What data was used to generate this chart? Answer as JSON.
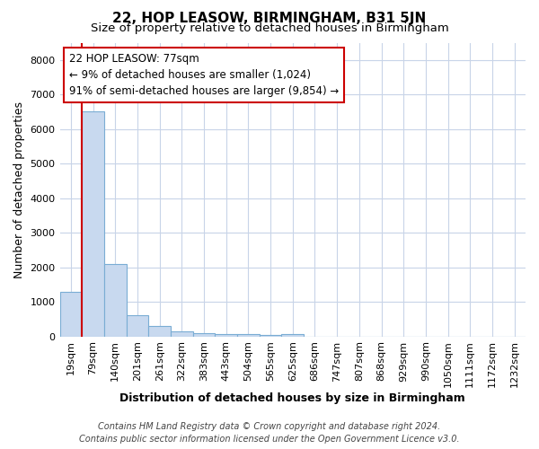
{
  "title": "22, HOP LEASOW, BIRMINGHAM, B31 5JN",
  "subtitle": "Size of property relative to detached houses in Birmingham",
  "xlabel": "Distribution of detached houses by size in Birmingham",
  "ylabel": "Number of detached properties",
  "footer_line1": "Contains HM Land Registry data © Crown copyright and database right 2024.",
  "footer_line2": "Contains public sector information licensed under the Open Government Licence v3.0.",
  "categories": [
    "19sqm",
    "79sqm",
    "140sqm",
    "201sqm",
    "261sqm",
    "322sqm",
    "383sqm",
    "443sqm",
    "504sqm",
    "565sqm",
    "625sqm",
    "686sqm",
    "747sqm",
    "807sqm",
    "868sqm",
    "929sqm",
    "990sqm",
    "1050sqm",
    "1111sqm",
    "1172sqm",
    "1232sqm"
  ],
  "values": [
    1300,
    6500,
    2100,
    620,
    310,
    150,
    100,
    80,
    75,
    30,
    75,
    0,
    0,
    0,
    0,
    0,
    0,
    0,
    0,
    0,
    0
  ],
  "bar_color": "#c8d9ef",
  "bar_edge_color": "#7aadd4",
  "vline_color": "#cc0000",
  "vline_x_index": 1,
  "annotation_title": "22 HOP LEASOW: 77sqm",
  "annotation_line2": "← 9% of detached houses are smaller (1,024)",
  "annotation_line3": "91% of semi-detached houses are larger (9,854) →",
  "annotation_box_color": "#cc0000",
  "annotation_box_facecolor": "#ffffff",
  "ylim": [
    0,
    8500
  ],
  "yticks": [
    0,
    1000,
    2000,
    3000,
    4000,
    5000,
    6000,
    7000,
    8000
  ],
  "bg_color": "#ffffff",
  "plot_bg_color": "#ffffff",
  "grid_color": "#c8d4e8",
  "title_fontsize": 11,
  "subtitle_fontsize": 9.5,
  "xlabel_fontsize": 9,
  "ylabel_fontsize": 9,
  "tick_fontsize": 8,
  "annotation_fontsize": 8.5,
  "footer_fontsize": 7
}
